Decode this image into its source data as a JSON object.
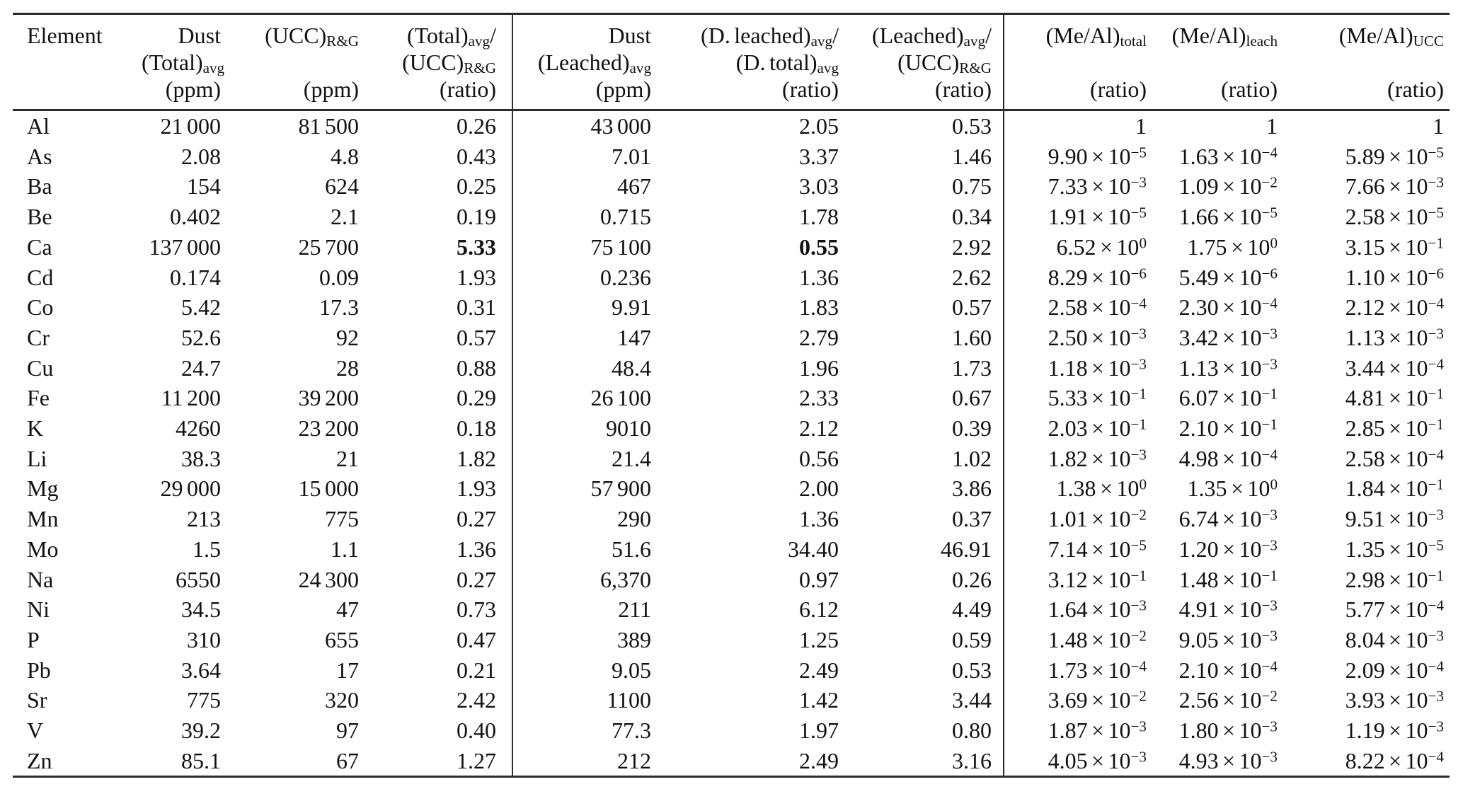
{
  "page": {
    "background": "#ffffff",
    "text_color": "#121212",
    "rule_color": "#2b2b2b"
  },
  "table": {
    "columns": [
      {
        "id": "element",
        "align": "left",
        "label_lines": [
          "Element",
          "",
          ""
        ]
      },
      {
        "id": "dust_total",
        "align": "right",
        "label_lines": [
          "Dust",
          "(Total)_{avg}",
          "(ppm)"
        ]
      },
      {
        "id": "ucc_rg",
        "align": "right",
        "label_lines": [
          "(UCC)_{R&G}",
          "",
          "(ppm)"
        ]
      },
      {
        "id": "total_ucc_ratio",
        "align": "right",
        "label_lines": [
          "(Total)_{avg}/",
          "(UCC)_{R&G}",
          "(ratio)"
        ],
        "divider_after": true
      },
      {
        "id": "dust_leached",
        "align": "right",
        "label_lines": [
          "Dust",
          "(Leached)_{avg}",
          "(ppm)"
        ]
      },
      {
        "id": "dleached_dtotal_ratio",
        "align": "right",
        "label_lines": [
          "(D. leached)_{avg}/",
          "(D. total)_{avg}",
          "(ratio)"
        ]
      },
      {
        "id": "leached_ucc_ratio",
        "align": "right",
        "label_lines": [
          "(Leached)_{avg}/",
          "(UCC)_{R&G}",
          "(ratio)"
        ],
        "divider_after": true
      },
      {
        "id": "me_al_total",
        "align": "right",
        "label_lines": [
          "(Me/Al)_{total}",
          "",
          "(ratio)"
        ]
      },
      {
        "id": "me_al_leach",
        "align": "right",
        "label_lines": [
          "(Me/Al)_{leach}",
          "",
          "(ratio)"
        ]
      },
      {
        "id": "me_al_ucc",
        "align": "right",
        "label_lines": [
          "(Me/Al)_{UCC}",
          "",
          "(ratio)"
        ]
      }
    ],
    "rows": [
      {
        "element": "Al",
        "dust_total": "21 000",
        "ucc_rg": "81 500",
        "total_ucc_ratio": "0.26",
        "dust_leached": "43 000",
        "dleached_dtotal_ratio": "2.05",
        "leached_ucc_ratio": "0.53",
        "me_al_total": "1",
        "me_al_leach": "1",
        "me_al_ucc": "1"
      },
      {
        "element": "As",
        "dust_total": "2.08",
        "ucc_rg": "4.8",
        "total_ucc_ratio": "0.43",
        "dust_leached": "7.01",
        "dleached_dtotal_ratio": "3.37",
        "leached_ucc_ratio": "1.46",
        "me_al_total": "9.90 × 10^{−5}",
        "me_al_leach": "1.63 × 10^{−4}",
        "me_al_ucc": "5.89 × 10^{−5}"
      },
      {
        "element": "Ba",
        "dust_total": "154",
        "ucc_rg": "624",
        "total_ucc_ratio": "0.25",
        "dust_leached": "467",
        "dleached_dtotal_ratio": "3.03",
        "leached_ucc_ratio": "0.75",
        "me_al_total": "7.33 × 10^{−3}",
        "me_al_leach": "1.09 × 10^{−2}",
        "me_al_ucc": "7.66 × 10^{−3}"
      },
      {
        "element": "Be",
        "dust_total": "0.402",
        "ucc_rg": "2.1",
        "total_ucc_ratio": "0.19",
        "dust_leached": "0.715",
        "dleached_dtotal_ratio": "1.78",
        "leached_ucc_ratio": "0.34",
        "me_al_total": "1.91 × 10^{−5}",
        "me_al_leach": "1.66 × 10^{−5}",
        "me_al_ucc": "2.58 × 10^{−5}"
      },
      {
        "element": "Ca",
        "dust_total": "137 000",
        "ucc_rg": "25 700",
        "total_ucc_ratio": "5.33",
        "dust_leached": "75 100",
        "dleached_dtotal_ratio": "0.55",
        "leached_ucc_ratio": "2.92",
        "me_al_total": "6.52 × 10^{0}",
        "me_al_leach": "1.75 × 10^{0}",
        "me_al_ucc": "3.15 × 10^{−1}",
        "bold": [
          "total_ucc_ratio",
          "dleached_dtotal_ratio"
        ]
      },
      {
        "element": "Cd",
        "dust_total": "0.174",
        "ucc_rg": "0.09",
        "total_ucc_ratio": "1.93",
        "dust_leached": "0.236",
        "dleached_dtotal_ratio": "1.36",
        "leached_ucc_ratio": "2.62",
        "me_al_total": "8.29 × 10^{−6}",
        "me_al_leach": "5.49 × 10^{−6}",
        "me_al_ucc": "1.10 × 10^{−6}"
      },
      {
        "element": "Co",
        "dust_total": "5.42",
        "ucc_rg": "17.3",
        "total_ucc_ratio": "0.31",
        "dust_leached": "9.91",
        "dleached_dtotal_ratio": "1.83",
        "leached_ucc_ratio": "0.57",
        "me_al_total": "2.58 × 10^{−4}",
        "me_al_leach": "2.30 × 10^{−4}",
        "me_al_ucc": "2.12 × 10^{−4}"
      },
      {
        "element": "Cr",
        "dust_total": "52.6",
        "ucc_rg": "92",
        "total_ucc_ratio": "0.57",
        "dust_leached": "147",
        "dleached_dtotal_ratio": "2.79",
        "leached_ucc_ratio": "1.60",
        "me_al_total": "2.50 × 10^{−3}",
        "me_al_leach": "3.42 × 10^{−3}",
        "me_al_ucc": "1.13 × 10^{−3}"
      },
      {
        "element": "Cu",
        "dust_total": "24.7",
        "ucc_rg": "28",
        "total_ucc_ratio": "0.88",
        "dust_leached": "48.4",
        "dleached_dtotal_ratio": "1.96",
        "leached_ucc_ratio": "1.73",
        "me_al_total": "1.18 × 10^{−3}",
        "me_al_leach": "1.13 × 10^{−3}",
        "me_al_ucc": "3.44 × 10^{−4}"
      },
      {
        "element": "Fe",
        "dust_total": "11 200",
        "ucc_rg": "39 200",
        "total_ucc_ratio": "0.29",
        "dust_leached": "26 100",
        "dleached_dtotal_ratio": "2.33",
        "leached_ucc_ratio": "0.67",
        "me_al_total": "5.33 × 10^{−1}",
        "me_al_leach": "6.07 × 10^{−1}",
        "me_al_ucc": "4.81 × 10^{−1}"
      },
      {
        "element": "K",
        "dust_total": "4260",
        "ucc_rg": "23 200",
        "total_ucc_ratio": "0.18",
        "dust_leached": "9010",
        "dleached_dtotal_ratio": "2.12",
        "leached_ucc_ratio": "0.39",
        "me_al_total": "2.03 × 10^{−1}",
        "me_al_leach": "2.10 × 10^{−1}",
        "me_al_ucc": "2.85 × 10^{−1}"
      },
      {
        "element": "Li",
        "dust_total": "38.3",
        "ucc_rg": "21",
        "total_ucc_ratio": "1.82",
        "dust_leached": "21.4",
        "dleached_dtotal_ratio": "0.56",
        "leached_ucc_ratio": "1.02",
        "me_al_total": "1.82 × 10^{−3}",
        "me_al_leach": "4.98 × 10^{−4}",
        "me_al_ucc": "2.58 × 10^{−4}"
      },
      {
        "element": "Mg",
        "dust_total": "29 000",
        "ucc_rg": "15 000",
        "total_ucc_ratio": "1.93",
        "dust_leached": "57 900",
        "dleached_dtotal_ratio": "2.00",
        "leached_ucc_ratio": "3.86",
        "me_al_total": "1.38 × 10^{0}",
        "me_al_leach": "1.35 × 10^{0}",
        "me_al_ucc": "1.84 × 10^{−1}"
      },
      {
        "element": "Mn",
        "dust_total": "213",
        "ucc_rg": "775",
        "total_ucc_ratio": "0.27",
        "dust_leached": "290",
        "dleached_dtotal_ratio": "1.36",
        "leached_ucc_ratio": "0.37",
        "me_al_total": "1.01 × 10^{−2}",
        "me_al_leach": "6.74 × 10^{−3}",
        "me_al_ucc": "9.51 × 10^{−3}"
      },
      {
        "element": "Mo",
        "dust_total": "1.5",
        "ucc_rg": "1.1",
        "total_ucc_ratio": "1.36",
        "dust_leached": "51.6",
        "dleached_dtotal_ratio": "34.40",
        "leached_ucc_ratio": "46.91",
        "me_al_total": "7.14 × 10^{−5}",
        "me_al_leach": "1.20 × 10^{−3}",
        "me_al_ucc": "1.35 × 10^{−5}"
      },
      {
        "element": "Na",
        "dust_total": "6550",
        "ucc_rg": "24 300",
        "total_ucc_ratio": "0.27",
        "dust_leached": "6,370",
        "dleached_dtotal_ratio": "0.97",
        "leached_ucc_ratio": "0.26",
        "me_al_total": "3.12 × 10^{−1}",
        "me_al_leach": "1.48 × 10^{−1}",
        "me_al_ucc": "2.98 × 10^{−1}"
      },
      {
        "element": "Ni",
        "dust_total": "34.5",
        "ucc_rg": "47",
        "total_ucc_ratio": "0.73",
        "dust_leached": "211",
        "dleached_dtotal_ratio": "6.12",
        "leached_ucc_ratio": "4.49",
        "me_al_total": "1.64 × 10^{−3}",
        "me_al_leach": "4.91 × 10^{−3}",
        "me_al_ucc": "5.77 × 10^{−4}"
      },
      {
        "element": "P",
        "dust_total": "310",
        "ucc_rg": "655",
        "total_ucc_ratio": "0.47",
        "dust_leached": "389",
        "dleached_dtotal_ratio": "1.25",
        "leached_ucc_ratio": "0.59",
        "me_al_total": "1.48 × 10^{−2}",
        "me_al_leach": "9.05 × 10^{−3}",
        "me_al_ucc": "8.04 × 10^{−3}"
      },
      {
        "element": "Pb",
        "dust_total": "3.64",
        "ucc_rg": "17",
        "total_ucc_ratio": "0.21",
        "dust_leached": "9.05",
        "dleached_dtotal_ratio": "2.49",
        "leached_ucc_ratio": "0.53",
        "me_al_total": "1.73 × 10^{−4}",
        "me_al_leach": "2.10 × 10^{−4}",
        "me_al_ucc": "2.09 × 10^{−4}"
      },
      {
        "element": "Sr",
        "dust_total": "775",
        "ucc_rg": "320",
        "total_ucc_ratio": "2.42",
        "dust_leached": "1100",
        "dleached_dtotal_ratio": "1.42",
        "leached_ucc_ratio": "3.44",
        "me_al_total": "3.69 × 10^{−2}",
        "me_al_leach": "2.56 × 10^{−2}",
        "me_al_ucc": "3.93 × 10^{−3}"
      },
      {
        "element": "V",
        "dust_total": "39.2",
        "ucc_rg": "97",
        "total_ucc_ratio": "0.40",
        "dust_leached": "77.3",
        "dleached_dtotal_ratio": "1.97",
        "leached_ucc_ratio": "0.80",
        "me_al_total": "1.87 × 10^{−3}",
        "me_al_leach": "1.80 × 10^{−3}",
        "me_al_ucc": "1.19 × 10^{−3}"
      },
      {
        "element": "Zn",
        "dust_total": "85.1",
        "ucc_rg": "67",
        "total_ucc_ratio": "1.27",
        "dust_leached": "212",
        "dleached_dtotal_ratio": "2.49",
        "leached_ucc_ratio": "3.16",
        "me_al_total": "4.05 × 10^{−3}",
        "me_al_leach": "4.93 × 10^{−3}",
        "me_al_ucc": "8.22 × 10^{−4}"
      }
    ]
  }
}
